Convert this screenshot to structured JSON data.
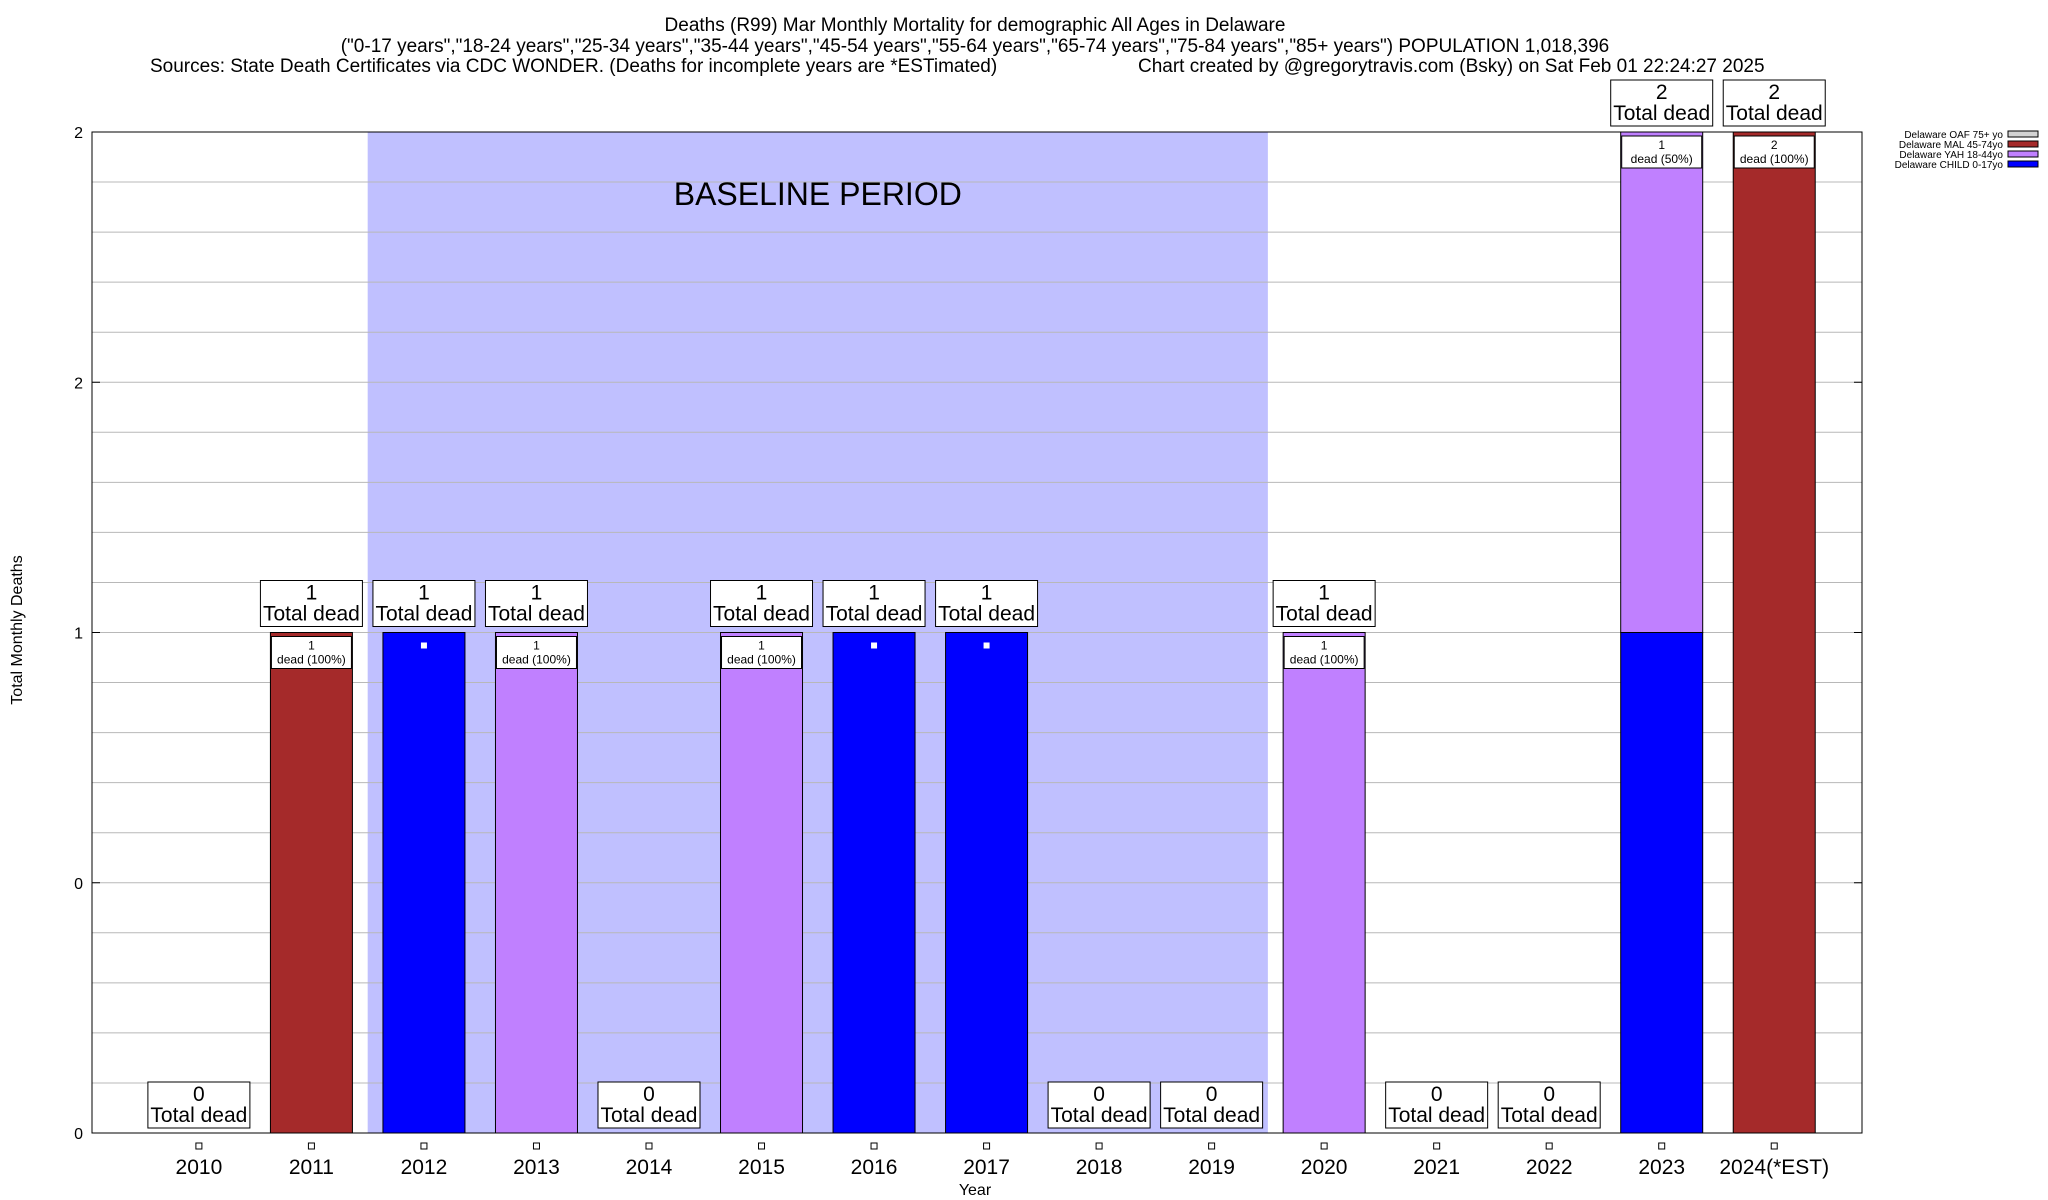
{
  "title_lines": [
    "Deaths (R99) Mar Monthly Mortality for demographic All Ages in Delaware",
    "(\"0-17 years\",\"18-24 years\",\"25-34 years\",\"35-44 years\",\"45-54 years\",\"55-64 years\",\"65-74 years\",\"75-84 years\",\"85+ years\") POPULATION 1,018,396",
    "Sources: State Death Certificates via CDC WONDER. (Deaths for incomplete years are *ESTimated)",
    "Chart created by @gregorytravis.com (Bsky) on Sat Feb 01 22:24:27 2025"
  ],
  "chart_data": {
    "type": "bar",
    "stacked": true,
    "xlabel": "Year",
    "ylabel": "Total Monthly Deaths",
    "ylim": [
      0,
      2
    ],
    "y_tick_labels": [
      "0",
      "0",
      "1",
      "2",
      "2"
    ],
    "grid": true,
    "legend_placement": "top-right",
    "baseline_period": {
      "label": "BASELINE PERIOD",
      "from": "2012",
      "to": "2019"
    },
    "categories": [
      "2010",
      "2011",
      "2012",
      "2013",
      "2014",
      "2015",
      "2016",
      "2017",
      "2018",
      "2019",
      "2020",
      "2021",
      "2022",
      "2023",
      "2024(*EST)"
    ],
    "series": [
      {
        "name": "Delaware CHILD 0-17yo",
        "color": "#0000ff",
        "values": [
          0,
          0,
          1,
          0,
          0,
          0,
          1,
          1,
          0,
          0,
          0,
          0,
          0,
          1,
          0
        ]
      },
      {
        "name": "Delaware YAH 18-44yo",
        "color": "#c080ff",
        "values": [
          0,
          0,
          0,
          1,
          0,
          1,
          0,
          0,
          0,
          0,
          1,
          0,
          0,
          1,
          0
        ]
      },
      {
        "name": "Delaware MAL 45-74yo",
        "color": "#a52a2a",
        "values": [
          0,
          1,
          0,
          0,
          0,
          0,
          0,
          0,
          0,
          0,
          0,
          0,
          0,
          0,
          2
        ]
      },
      {
        "name": "Delaware OAF 75+ yo",
        "color": "#d3d3d3",
        "values": [
          0,
          0,
          0,
          0,
          0,
          0,
          0,
          0,
          0,
          0,
          0,
          0,
          0,
          0,
          0
        ]
      }
    ],
    "legend_order": [
      3,
      2,
      1,
      0
    ],
    "totals": [
      0,
      1,
      1,
      1,
      0,
      1,
      1,
      1,
      0,
      0,
      1,
      0,
      0,
      2,
      2
    ],
    "total_suffix": "Total dead",
    "segment_labels": [
      null,
      {
        "count": "1",
        "text": "dead (100%)"
      },
      null,
      {
        "count": "1",
        "text": "dead (100%)"
      },
      null,
      {
        "count": "1",
        "text": "dead (100%)"
      },
      null,
      null,
      null,
      null,
      {
        "count": "1",
        "text": "dead (100%)"
      },
      null,
      null,
      {
        "count": "1",
        "text": "dead (50%)"
      },
      {
        "count": "2",
        "text": "dead (100%)"
      }
    ]
  }
}
